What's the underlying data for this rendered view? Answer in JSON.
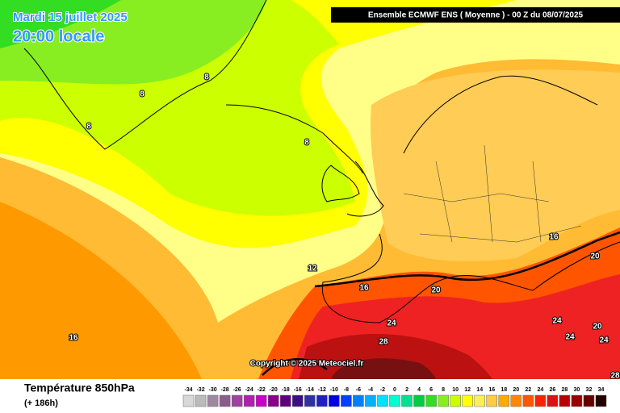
{
  "header": {
    "date": "Mardi 15 juillet 2025",
    "time": "20:00 locale",
    "model": "Ensemble ECMWF ENS  ( Moyenne )  -  00 Z du 08/07/2025"
  },
  "copyright": "Copyright © 2025 Meteociel.fr",
  "contour_labels": [
    8,
    8,
    8,
    8,
    12,
    16,
    16,
    16,
    20,
    20,
    20,
    24,
    24,
    24,
    24,
    28,
    28
  ],
  "legend": {
    "title": "Température 850hPa",
    "subtitle": "(+ 186h)",
    "labels": [
      -34,
      -32,
      -30,
      -28,
      -26,
      -24,
      -22,
      -20,
      -18,
      -16,
      -14,
      -12,
      -10,
      -8,
      -6,
      -4,
      -2,
      0,
      2,
      4,
      6,
      8,
      10,
      12,
      14,
      16,
      18,
      20,
      22,
      24,
      26,
      28,
      30,
      32,
      34
    ],
    "colors": [
      "#d8d8d8",
      "#bbbbbb",
      "#9e8aa0",
      "#8c5c8c",
      "#a040a0",
      "#b020b0",
      "#c800c8",
      "#8c008c",
      "#600080",
      "#3a1080",
      "#3030a0",
      "#2020c0",
      "#0000e0",
      "#0040ff",
      "#0080ff",
      "#00b0ff",
      "#00e0ff",
      "#00ffd0",
      "#00e090",
      "#00cc44",
      "#33dd22",
      "#88ee22",
      "#ccff00",
      "#ffff00",
      "#ffee55",
      "#ffcc44",
      "#ffaa00",
      "#ff8800",
      "#ff5500",
      "#ff2200",
      "#dd1111",
      "#bb0000",
      "#990000",
      "#660000",
      "#220000"
    ]
  }
}
